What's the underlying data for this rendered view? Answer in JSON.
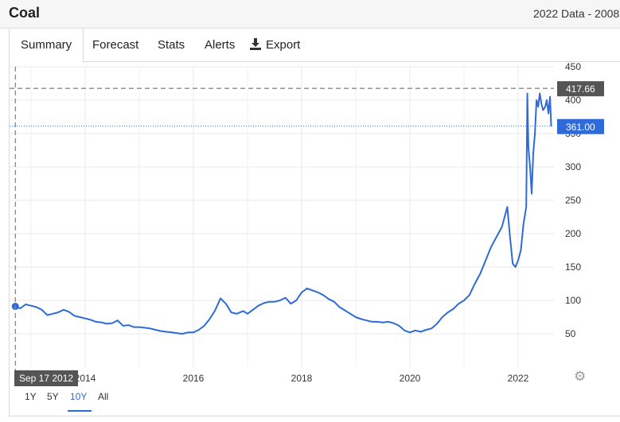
{
  "header": {
    "title": "Coal",
    "data_range": "2022 Data - 2008"
  },
  "tabs": [
    {
      "label": "Summary",
      "active": true
    },
    {
      "label": "Forecast"
    },
    {
      "label": "Stats"
    },
    {
      "label": "Alerts"
    },
    {
      "label": "Export"
    }
  ],
  "range_buttons": [
    "1Y",
    "5Y",
    "10Y",
    "All"
  ],
  "range_selected": "10Y",
  "crosshair": {
    "date_label": "Sep 17 2012",
    "value_label": "417.66"
  },
  "last_price_label": "361.00",
  "colors": {
    "line": "#2e6bd9",
    "last_price_badge": "#2e6bd9",
    "crosshair_badge": "#555555"
  },
  "chart_data": {
    "type": "line",
    "x_ticks": [
      "2014",
      "2016",
      "2018",
      "2020",
      "2022"
    ],
    "y_ticks": [
      "50",
      "100",
      "150",
      "200",
      "250",
      "300",
      "350",
      "400",
      "450"
    ],
    "ylim": [
      0,
      450
    ],
    "xlim": [
      2012.7,
      2022.75
    ],
    "grid": true,
    "series": [
      {
        "x": [
          2012.71,
          2012.8,
          2012.9,
          2013.0,
          2013.1,
          2013.2,
          2013.3,
          2013.4,
          2013.5,
          2013.6,
          2013.7,
          2013.8,
          2013.9,
          2014.0,
          2014.1,
          2014.2,
          2014.3,
          2014.4,
          2014.5,
          2014.6,
          2014.7,
          2014.8,
          2014.9,
          2015.0,
          2015.1,
          2015.2,
          2015.3,
          2015.4,
          2015.5,
          2015.6,
          2015.7,
          2015.8,
          2015.9,
          2016.0,
          2016.1,
          2016.2,
          2016.3,
          2016.4,
          2016.5,
          2016.6,
          2016.7,
          2016.8,
          2016.86,
          2016.92,
          2017.0,
          2017.1,
          2017.2,
          2017.3,
          2017.4,
          2017.5,
          2017.6,
          2017.7,
          2017.8,
          2017.9,
          2018.0,
          2018.1,
          2018.2,
          2018.3,
          2018.4,
          2018.5,
          2018.6,
          2018.7,
          2018.8,
          2018.9,
          2019.0,
          2019.1,
          2019.2,
          2019.3,
          2019.4,
          2019.5,
          2019.6,
          2019.7,
          2019.8,
          2019.9,
          2020.0,
          2020.1,
          2020.2,
          2020.3,
          2020.4,
          2020.5,
          2020.6,
          2020.7,
          2020.8,
          2020.9,
          2021.0,
          2021.1,
          2021.2,
          2021.3,
          2021.4,
          2021.5,
          2021.6,
          2021.7,
          2021.8,
          2021.85,
          2021.9,
          2021.95,
          2022.0,
          2022.05,
          2022.1,
          2022.15,
          2022.17,
          2022.19,
          2022.22,
          2022.25,
          2022.28,
          2022.31,
          2022.34,
          2022.37,
          2022.4,
          2022.43,
          2022.46,
          2022.5,
          2022.53,
          2022.56,
          2022.59,
          2022.61
        ],
        "y": [
          91,
          88,
          94,
          92,
          90,
          86,
          78,
          80,
          82,
          86,
          83,
          77,
          75,
          73,
          71,
          68,
          67,
          65,
          66,
          70,
          62,
          63,
          60,
          60,
          59,
          58,
          56,
          54,
          53,
          52,
          51,
          50,
          52,
          52,
          56,
          62,
          72,
          85,
          103,
          95,
          82,
          80,
          82,
          84,
          80,
          86,
          92,
          96,
          98,
          98,
          100,
          104,
          95,
          100,
          112,
          118,
          115,
          112,
          108,
          102,
          98,
          90,
          85,
          80,
          75,
          72,
          70,
          68,
          68,
          67,
          68,
          66,
          62,
          55,
          52,
          55,
          53,
          56,
          58,
          65,
          75,
          82,
          87,
          95,
          100,
          108,
          125,
          140,
          160,
          180,
          195,
          210,
          240,
          195,
          155,
          150,
          160,
          175,
          215,
          240,
          410,
          330,
          300,
          260,
          320,
          350,
          400,
          390,
          410,
          395,
          385,
          390,
          400,
          380,
          405,
          361
        ]
      }
    ]
  }
}
